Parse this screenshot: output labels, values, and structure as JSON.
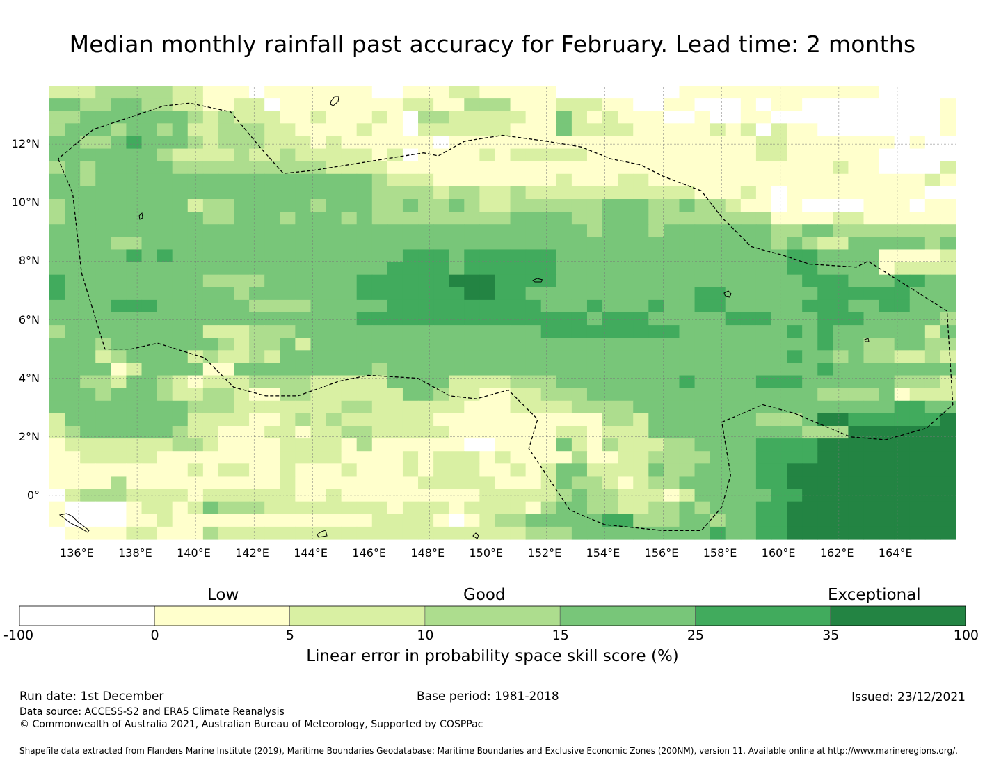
{
  "title": "Median monthly rainfall past accuracy for February. Lead time: 2 months",
  "colors": {
    "c0": "#ffffff",
    "c1": "#ffffcc",
    "c2": "#d9f0a3",
    "c3": "#addd8e",
    "c4": "#78c679",
    "c5": "#41ab5d",
    "c6": "#238443"
  },
  "map": {
    "lon_range": [
      135.0,
      166.0
    ],
    "lat_range": [
      -1.5,
      14.0
    ],
    "lon_ticks": [
      "136°E",
      "138°E",
      "140°E",
      "142°E",
      "144°E",
      "146°E",
      "148°E",
      "150°E",
      "152°E",
      "154°E",
      "156°E",
      "158°E",
      "160°E",
      "162°E",
      "164°E"
    ],
    "lat_ticks": [
      "12°N",
      "10°N",
      "8°N",
      "6°N",
      "4°N",
      "2°N",
      "0°"
    ],
    "eez_boundary": [
      [
        135.3,
        11.5
      ],
      [
        135.8,
        10.3
      ],
      [
        136.1,
        7.6
      ],
      [
        136.9,
        5.0
      ],
      [
        137.8,
        5.0
      ],
      [
        138.7,
        5.2
      ],
      [
        140.3,
        4.7
      ],
      [
        141.3,
        3.7
      ],
      [
        142.4,
        3.4
      ],
      [
        143.5,
        3.4
      ],
      [
        144.9,
        3.9
      ],
      [
        145.9,
        4.1
      ],
      [
        147.6,
        4.0
      ],
      [
        148.7,
        3.4
      ],
      [
        149.6,
        3.3
      ],
      [
        150.7,
        3.6
      ],
      [
        151.7,
        2.6
      ],
      [
        151.4,
        1.6
      ],
      [
        152.8,
        -0.5
      ],
      [
        154.0,
        -1.0
      ],
      [
        156.0,
        -1.2
      ],
      [
        157.3,
        -1.2
      ],
      [
        158.0,
        -0.4
      ],
      [
        158.3,
        0.7
      ],
      [
        158.0,
        2.5
      ],
      [
        159.4,
        3.1
      ],
      [
        160.5,
        2.8
      ],
      [
        161.2,
        2.5
      ],
      [
        162.4,
        2.0
      ],
      [
        163.6,
        1.9
      ],
      [
        165.0,
        2.3
      ],
      [
        165.9,
        3.1
      ],
      [
        165.7,
        6.3
      ],
      [
        163.0,
        8.0
      ],
      [
        162.6,
        7.8
      ],
      [
        161.0,
        7.9
      ],
      [
        160.1,
        8.2
      ],
      [
        159.0,
        8.5
      ],
      [
        158.0,
        9.5
      ],
      [
        157.3,
        10.4
      ],
      [
        156.0,
        10.9
      ],
      [
        155.2,
        11.3
      ],
      [
        154.2,
        11.5
      ],
      [
        153.2,
        11.9
      ],
      [
        152.0,
        12.1
      ],
      [
        150.5,
        12.3
      ],
      [
        149.2,
        12.1
      ],
      [
        148.3,
        11.6
      ],
      [
        147.8,
        11.7
      ],
      [
        146.5,
        11.5
      ],
      [
        144.0,
        11.1
      ],
      [
        143.0,
        11.0
      ],
      [
        142.2,
        11.9
      ],
      [
        141.2,
        13.1
      ],
      [
        139.8,
        13.4
      ],
      [
        138.9,
        13.3
      ],
      [
        138.0,
        13.0
      ],
      [
        136.5,
        12.5
      ],
      [
        135.3,
        11.5
      ]
    ],
    "grid_rows": [
      "22233333221110111111100111221111100000000111111111111100000",
      "44334433221122011111111221133311122211001100010110000000001",
      "33444444432322211211121033222221142121110010011000000000001",
      "34443443422333221111211022222211142222111112120211000000001",
      "44334544432333222121111110111111111111111111112211111110100",
      "44444443222232232222212011112122222111111111112211111100000",
      "34344444333333333322221111111111111111111111111111121100002",
      "44344444444444444444432221111111121112211111111111111111121",
      "44444444444444444444433332332232222222222211121011111111100",
      "34444444423344444344433433432233333344433433211010000111011",
      "34444444443344434443433333333344443344433333333111122111111",
      "44444444444444444444444444444444444344434444444334433333333",
      "44443344444444444444444444444444444444444444444343224444434",
      "44444545444444444444444555455555544444444444444455444411112",
      "44444444444444444444445555455555544444444444444455444412222",
      "54444444443333444444555555666555544444444444444445554445544",
      "54444444444434444444555555566554444444444455444444555555444",
      "44445554444443333444445555555555444544454455444445554455444",
      "44444444444444444444555555555555555455544444555444555444443",
      "34444444442223334444444444444444555555555444444454544444424",
      "44434444444323342444444444444444444444444444444444544334433",
      "44423444423223244444444444444444444444444444444454434332232",
      "44441244441144444444434444444444444444444444444444544444444",
      "44332443212223333222224444222233344444444544445554444443332",
      "44434443223321133222222443221122333444444444444444333341222",
      "44444444433322222223322222211122223333444444444444444445544",
      "24444444422221123232222221111111111133244444443334665555556",
      "23444444322111221223322222111111122122244444444443336666666",
      "12222222332111122221311111100111142132223344445555666666666",
      "11222221111111122221111212221211113112233334445555666666666",
      "11111111121221121112111212221121244222243344445566666666666",
      "11113111111111121111111122222111243321233444445566666666666",
      "02333222212222221121111111112222234332221244444556666666666",
      "10000122124333222222221222122221344332233434445566666666666",
      "10000112111111111111122221012334444455333443445566666666666",
      "01111221113222222222222222222223334444444445445566666666666"
    ]
  },
  "colorbar": {
    "ticks": [
      "-100",
      "0",
      "5",
      "10",
      "15",
      "25",
      "35",
      "100"
    ],
    "categories": [
      "Low",
      "Good",
      "Exceptional"
    ],
    "label": "Linear error in probability space skill score (%)"
  },
  "meta": {
    "run_date": "Run date: 1st December",
    "base_period": "Base period: 1981-2018",
    "issued": "Issued: 23/12/2021",
    "data_source": "Data source: ACCESS-S2 and ERA5 Climate Reanalysis",
    "copyright": "© Commonwealth of Australia 2021, Australian Bureau of Meteorology, Supported by COSPPac",
    "shapefile": "Shapefile data extracted from Flanders Marine Institute (2019), Maritime Boundaries Geodatabase: Maritime Boundaries and Exclusive Economic Zones (200NM), version 11. Available online at http://www.marineregions.org/."
  }
}
